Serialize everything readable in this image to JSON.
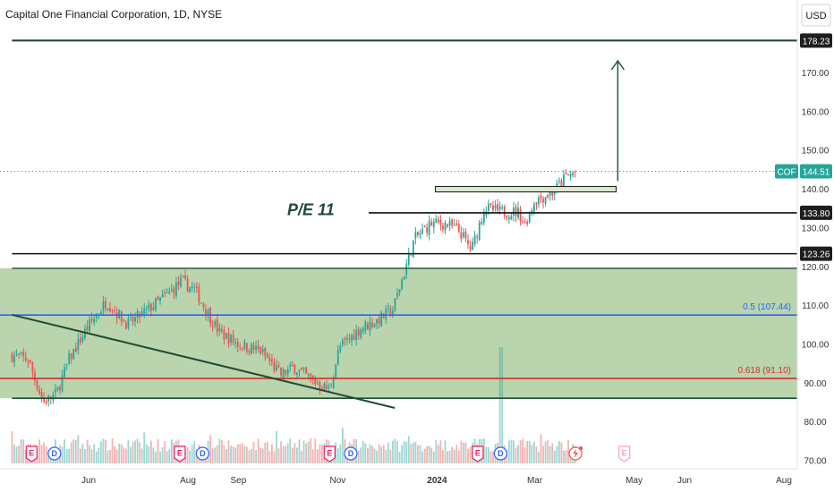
{
  "header": {
    "title": "Capital One Financial Corporation, 1D, NYSE",
    "currency": "USD"
  },
  "colors": {
    "up": "#26a69a",
    "down": "#ef5350",
    "zone_fill": "#aecc9f",
    "dark_green": "#1f4b35",
    "blue": "#2962ff",
    "red": "#d32f2f",
    "black": "#111111",
    "arrow": "#1f5d3b",
    "axis_text": "#333333"
  },
  "chart_data": {
    "type": "candlestick",
    "ylim": [
      70,
      184
    ],
    "y_ticks": [
      170,
      160,
      150,
      140,
      130,
      120,
      110,
      100,
      90,
      80,
      70
    ],
    "y_tick_labels": [
      "170.00",
      "160.00",
      "150.00",
      "140.00",
      "130.00",
      "120.00",
      "110.00",
      "100.00",
      "90.00",
      "80.00",
      "70.00"
    ],
    "x_ticks": [
      {
        "label": "Jun",
        "date": "2023-06-01"
      },
      {
        "label": "Aug",
        "date": "2023-08-01"
      },
      {
        "label": "Sep",
        "date": "2023-09-01"
      },
      {
        "label": "Nov",
        "date": "2023-11-01"
      },
      {
        "label": "2024",
        "date": "2024-01-01"
      },
      {
        "label": "Mar",
        "date": "2024-03-01"
      },
      {
        "label": "May",
        "date": "2024-05-01"
      },
      {
        "label": "Jun",
        "date": "2024-06-01"
      },
      {
        "label": "Aug",
        "date": "2024-08-01"
      }
    ],
    "price_tags": [
      {
        "label": "178.23",
        "value": 178.23,
        "style": "dark"
      },
      {
        "label": "133.80",
        "value": 133.8,
        "style": "dark"
      },
      {
        "label": "123.26",
        "value": 123.26,
        "style": "dark"
      }
    ],
    "current_price": {
      "symbol": "COF",
      "label": "144.51",
      "value": 144.51
    },
    "horizontal_levels": [
      {
        "name": "resistance-178",
        "value": 178.23,
        "from": "2023-04-15",
        "to": "2024-08-31",
        "color": "dark_green"
      },
      {
        "name": "level-133-80",
        "value": 133.8,
        "from": "2023-11-20",
        "to": "2024-08-31",
        "color": "black"
      },
      {
        "name": "level-123-26",
        "value": 123.26,
        "from": "2023-04-15",
        "to": "2024-08-31",
        "color": "black"
      },
      {
        "name": "zone-top",
        "value": 119.5,
        "from": "2023-04-15",
        "to": "2024-08-31",
        "color": "dark_green"
      },
      {
        "name": "level-86",
        "value": 86.0,
        "from": "2023-04-15",
        "to": "2024-08-31",
        "color": "dark_green"
      }
    ],
    "fib_levels": [
      {
        "label": "0.5 (107.44)",
        "value": 107.44,
        "color": "blue"
      },
      {
        "label": "0.618 (91.10)",
        "value": 91.1,
        "color": "red"
      }
    ],
    "zone": {
      "from_value": 119.5,
      "to_value": 86.0
    },
    "breakout_box": {
      "low": 139.2,
      "high": 140.6,
      "from": "2023-12-31",
      "to": "2024-04-20"
    },
    "trendline": {
      "start": {
        "date": "2023-04-15",
        "value": 107.5
      },
      "end": {
        "date": "2023-12-06",
        "value": 83.5
      }
    },
    "target_arrow": {
      "date": "2024-04-21",
      "from_value": 142,
      "to_value": 173
    },
    "annotation": {
      "text": "P/E 11",
      "date": "2023-10-01",
      "value": 133.2
    },
    "events": [
      {
        "type": "E",
        "date": "2023-04-27"
      },
      {
        "type": "D",
        "date": "2023-05-11"
      },
      {
        "type": "E",
        "date": "2023-07-27"
      },
      {
        "type": "D",
        "date": "2023-08-10"
      },
      {
        "type": "E",
        "date": "2023-10-27"
      },
      {
        "type": "D",
        "date": "2023-11-09"
      },
      {
        "type": "E",
        "date": "2024-01-26"
      },
      {
        "type": "D",
        "date": "2024-02-09"
      },
      {
        "type": "bolt",
        "date": "2024-03-26"
      },
      {
        "type": "E-future",
        "date": "2024-04-25"
      }
    ],
    "ohlc_path": [
      [
        "2023-04-15",
        97
      ],
      [
        "2023-04-25",
        96
      ],
      [
        "2023-05-04",
        85
      ],
      [
        "2023-05-12",
        87
      ],
      [
        "2023-05-20",
        96
      ],
      [
        "2023-05-31",
        104
      ],
      [
        "2023-06-12",
        111
      ],
      [
        "2023-06-25",
        105
      ],
      [
        "2023-07-05",
        108
      ],
      [
        "2023-07-20",
        113
      ],
      [
        "2023-07-28",
        116
      ],
      [
        "2023-08-05",
        114
      ],
      [
        "2023-08-20",
        103
      ],
      [
        "2023-09-01",
        100
      ],
      [
        "2023-09-15",
        98
      ],
      [
        "2023-09-27",
        92
      ],
      [
        "2023-10-05",
        94
      ],
      [
        "2023-10-15",
        91
      ],
      [
        "2023-10-27",
        88
      ],
      [
        "2023-11-02",
        99
      ],
      [
        "2023-11-15",
        104
      ],
      [
        "2023-11-25",
        106
      ],
      [
        "2023-12-05",
        109
      ],
      [
        "2023-12-18",
        127
      ],
      [
        "2023-12-28",
        131
      ],
      [
        "2024-01-06",
        131
      ],
      [
        "2024-01-15",
        129
      ],
      [
        "2024-01-22",
        124
      ],
      [
        "2024-01-30",
        135
      ],
      [
        "2024-02-10",
        134
      ],
      [
        "2024-02-20",
        134
      ],
      [
        "2024-02-24",
        131
      ],
      [
        "2024-03-01",
        137
      ],
      [
        "2024-03-12",
        139
      ],
      [
        "2024-03-20",
        143
      ],
      [
        "2024-03-27",
        144.5
      ]
    ]
  }
}
